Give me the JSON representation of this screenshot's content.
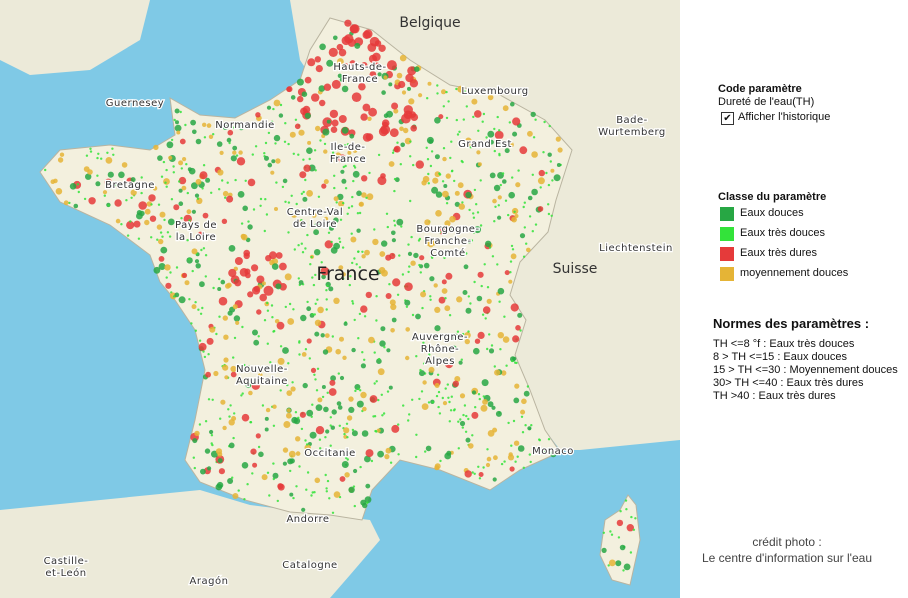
{
  "map": {
    "labels": [
      {
        "lines": [
          "Belgique"
        ]
      },
      {
        "lines": [
          "Hauts-de-",
          "France"
        ]
      },
      {
        "lines": [
          "Luxembourg"
        ]
      },
      {
        "lines": [
          "Guernesey"
        ]
      },
      {
        "lines": [
          "Normandie"
        ]
      },
      {
        "lines": [
          "Ile-de-",
          "France"
        ]
      },
      {
        "lines": [
          "Grand Est"
        ]
      },
      {
        "lines": [
          "Bade-",
          "Wurtemberg"
        ]
      },
      {
        "lines": [
          "Bretagne"
        ]
      },
      {
        "lines": [
          "Pays de",
          "la Loire"
        ]
      },
      {
        "lines": [
          "Centre-Val",
          "de Loire"
        ]
      },
      {
        "lines": [
          "Bourgogne-",
          "Franche-",
          "Comté"
        ]
      },
      {
        "lines": [
          "Liechtenstein"
        ]
      },
      {
        "lines": [
          "Suisse"
        ]
      },
      {
        "lines": [
          "France"
        ]
      },
      {
        "lines": [
          "Auvergne-",
          "Rhône-",
          "Alpes"
        ]
      },
      {
        "lines": [
          "Nouvelle-",
          "Aquitaine"
        ]
      },
      {
        "lines": [
          "Occitanie"
        ]
      },
      {
        "lines": [
          "Monaco"
        ]
      },
      {
        "lines": [
          "Andorre"
        ]
      },
      {
        "lines": [
          "Castille-",
          "et-León"
        ]
      },
      {
        "lines": [
          "Aragón"
        ]
      },
      {
        "lines": [
          "Catalogne"
        ]
      }
    ]
  },
  "panel": {
    "code_title": "Code paramètre",
    "code_value": "Dureté de l'eau(TH)",
    "history_checkbox": {
      "checked": true,
      "label": "Afficher l'historique"
    },
    "class_title": "Classe du paramètre",
    "legend": [
      {
        "label": "Eaux douces",
        "color": "#27a744"
      },
      {
        "label": "Eaux très douces",
        "color": "#33e33a"
      },
      {
        "label": "Eaux très dures",
        "color": "#e53a3a"
      },
      {
        "label": "moyennement douces",
        "color": "#e5b436"
      }
    ],
    "norms_title": "Normes des paramètres :",
    "norms": [
      "TH <=8 °f  : Eaux très douces",
      "8 > TH <=15  : Eaux douces",
      "15 > TH <=30 : Moyennement douces",
      "30> TH <=40 : Eaux très dures",
      "TH >40 : Eaux très dures"
    ],
    "credit": [
      "crédit photo :",
      "Le centre d'information sur l'eau"
    ]
  }
}
